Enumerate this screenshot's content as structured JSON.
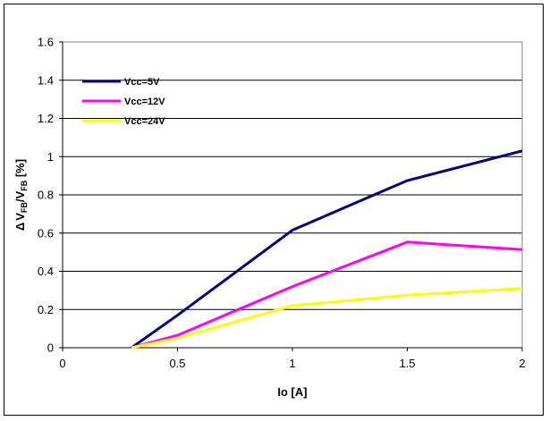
{
  "chart_data": {
    "type": "line",
    "title": "",
    "xlabel": "Io [A]",
    "ylabel": "ΔV  FB/VFB [%]",
    "ylabel_parts": {
      "delta": "Δ",
      "v1": "V",
      "sub1": "FB",
      "slash": "/",
      "v2": "V",
      "sub2": "FB",
      "unit": " [%]"
    },
    "xlim": [
      0,
      2
    ],
    "ylim": [
      0,
      1.6
    ],
    "xticks": [
      "0",
      "0.5",
      "1",
      "1.5",
      "2"
    ],
    "yticks": [
      "0",
      "0.2",
      "0.4",
      "0.6",
      "0.8",
      "1",
      "1.2",
      "1.4",
      "1.6"
    ],
    "grid": "horizontal",
    "legend_position": "top-left",
    "series": [
      {
        "name": "Vcc=5V",
        "color": "#000080",
        "x": [
          0.3,
          0.5,
          1,
          1.5,
          2
        ],
        "values": [
          0,
          0.17,
          0.615,
          0.875,
          1.03
        ]
      },
      {
        "name": "Vcc=12V",
        "color": "#ff00ff",
        "x": [
          0.3,
          0.5,
          1,
          1.5,
          2
        ],
        "values": [
          0,
          0.065,
          0.32,
          0.553,
          0.513
        ]
      },
      {
        "name": "Vcc=24V",
        "color": "#ffff00",
        "x": [
          0.3,
          0.5,
          1,
          1.5,
          2
        ],
        "values": [
          0,
          0.05,
          0.22,
          0.275,
          0.31
        ]
      }
    ]
  }
}
